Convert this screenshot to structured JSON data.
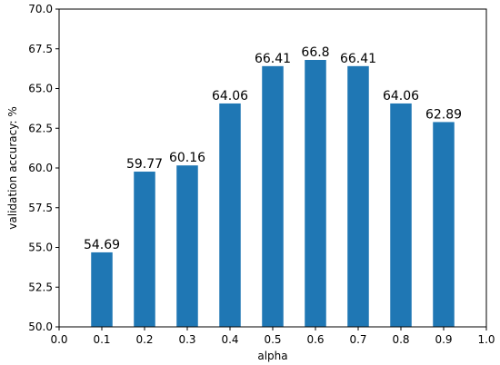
{
  "chart_data": {
    "type": "bar",
    "x": [
      0.1,
      0.2,
      0.3,
      0.4,
      0.5,
      0.6,
      0.7,
      0.8,
      0.9
    ],
    "values": [
      54.69,
      59.77,
      60.16,
      64.06,
      66.41,
      66.8,
      66.41,
      64.06,
      62.89
    ],
    "value_labels": [
      "54.69",
      "59.77",
      "60.16",
      "64.06",
      "66.41",
      "66.8",
      "66.41",
      "64.06",
      "62.89"
    ],
    "bar_width": 0.05,
    "xlabel": "alpha",
    "ylabel": "validation accuracy: %",
    "xlim": [
      0.0,
      1.0
    ],
    "ylim": [
      50.0,
      70.0
    ],
    "x_ticks": [
      "0.0",
      "0.1",
      "0.2",
      "0.3",
      "0.4",
      "0.5",
      "0.6",
      "0.7",
      "0.8",
      "0.9",
      "1.0"
    ],
    "y_ticks": [
      "50.0",
      "52.5",
      "55.0",
      "57.5",
      "60.0",
      "62.5",
      "65.0",
      "67.5",
      "70.0"
    ],
    "bar_color": "#1f77b4",
    "grid": false,
    "legend": false
  }
}
